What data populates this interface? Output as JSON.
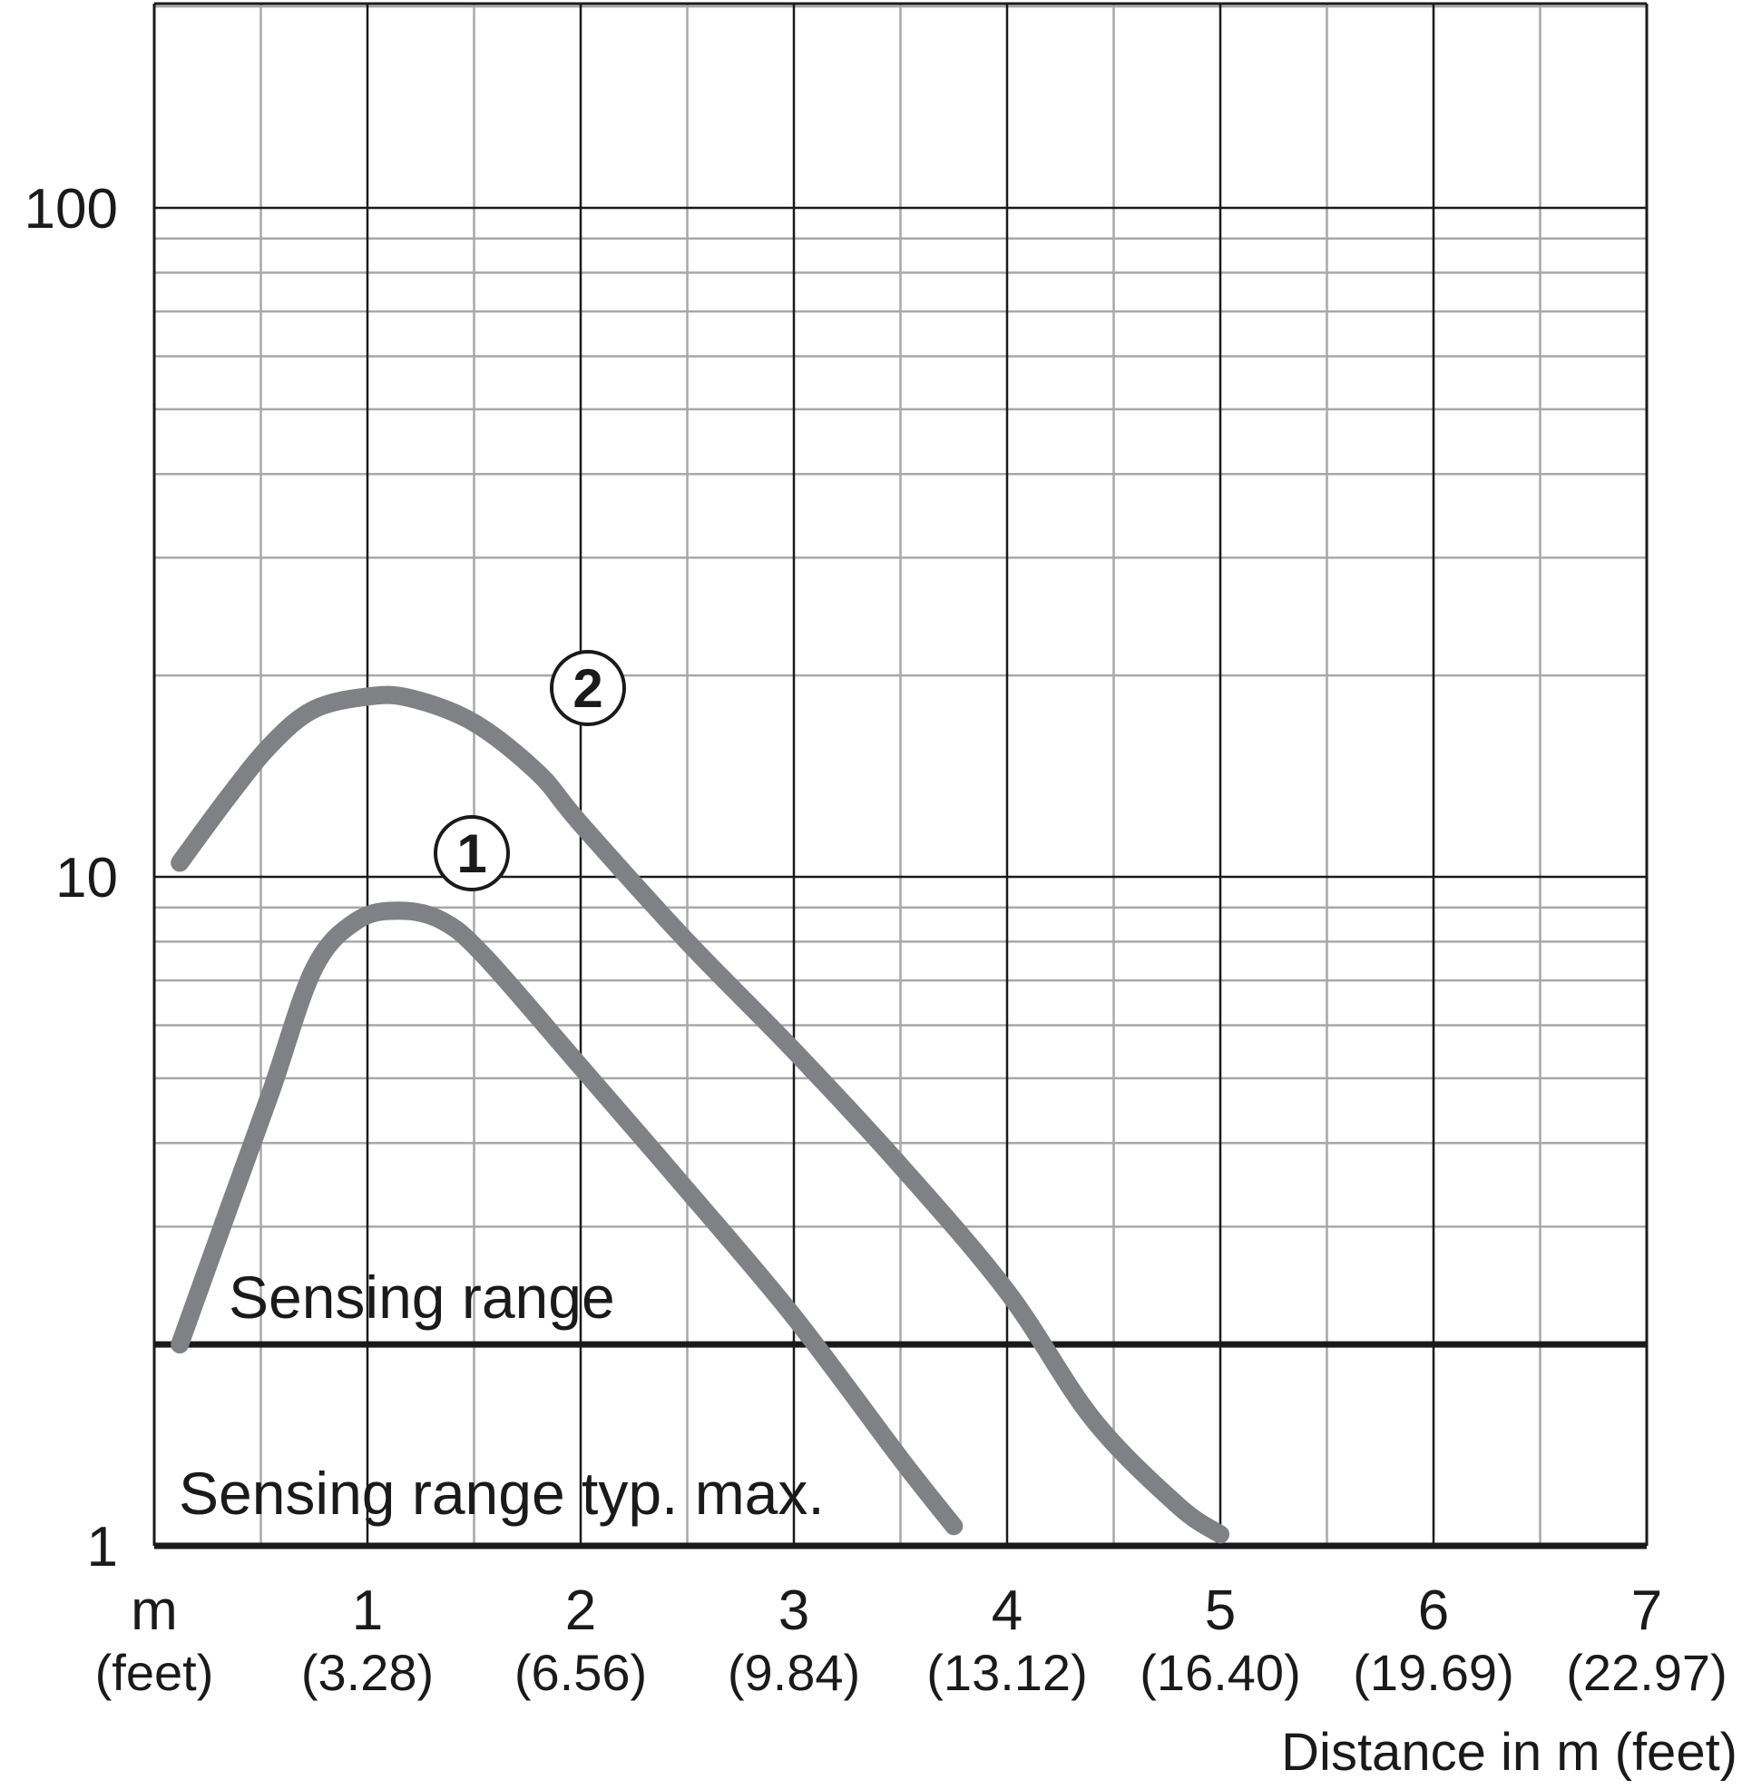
{
  "chart_data": {
    "type": "line",
    "title": "",
    "xlabel": "Distance in m (feet)",
    "ylabel": "",
    "x_unit_label": "m",
    "x_unit_sub_label": "(feet)",
    "xlim": [
      0,
      7
    ],
    "ylim": [
      1,
      300
    ],
    "y_scale": "log",
    "grid": true,
    "x_ticks": [
      {
        "value": 1,
        "label": "1",
        "sub": "(3.28)"
      },
      {
        "value": 2,
        "label": "2",
        "sub": "(6.56)"
      },
      {
        "value": 3,
        "label": "3",
        "sub": "(9.84)"
      },
      {
        "value": 4,
        "label": "4",
        "sub": "(13.12)"
      },
      {
        "value": 5,
        "label": "5",
        "sub": "(16.40)"
      },
      {
        "value": 6,
        "label": "6",
        "sub": "(19.69)"
      },
      {
        "value": 7,
        "label": "7",
        "sub": "(22.97)"
      }
    ],
    "y_ticks": [
      {
        "value": 1,
        "label": "1"
      },
      {
        "value": 10,
        "label": "10"
      },
      {
        "value": 100,
        "label": "100"
      }
    ],
    "reference_lines": [
      {
        "y": 2,
        "label": "Sensing range"
      },
      {
        "y": 1,
        "label": "Sensing range typ. max."
      }
    ],
    "series": [
      {
        "name": "①",
        "color": "#808184",
        "points": [
          [
            0.12,
            2.0
          ],
          [
            0.35,
            3.2
          ],
          [
            0.55,
            4.8
          ],
          [
            0.75,
            7.3
          ],
          [
            0.95,
            8.6
          ],
          [
            1.15,
            8.9
          ],
          [
            1.35,
            8.6
          ],
          [
            1.55,
            7.6
          ],
          [
            2.0,
            5.2
          ],
          [
            2.5,
            3.4
          ],
          [
            3.0,
            2.2
          ],
          [
            3.5,
            1.35
          ],
          [
            3.75,
            1.07
          ]
        ]
      },
      {
        "name": "②",
        "color": "#808184",
        "points": [
          [
            0.12,
            10.5
          ],
          [
            0.35,
            13.2
          ],
          [
            0.55,
            15.8
          ],
          [
            0.75,
            17.8
          ],
          [
            1.0,
            18.6
          ],
          [
            1.2,
            18.5
          ],
          [
            1.5,
            17.0
          ],
          [
            1.8,
            14.3
          ],
          [
            2.0,
            12.0
          ],
          [
            2.5,
            8.0
          ],
          [
            3.0,
            5.5
          ],
          [
            3.5,
            3.7
          ],
          [
            4.0,
            2.4
          ],
          [
            4.4,
            1.55
          ],
          [
            4.8,
            1.15
          ],
          [
            5.0,
            1.04
          ]
        ]
      }
    ]
  }
}
